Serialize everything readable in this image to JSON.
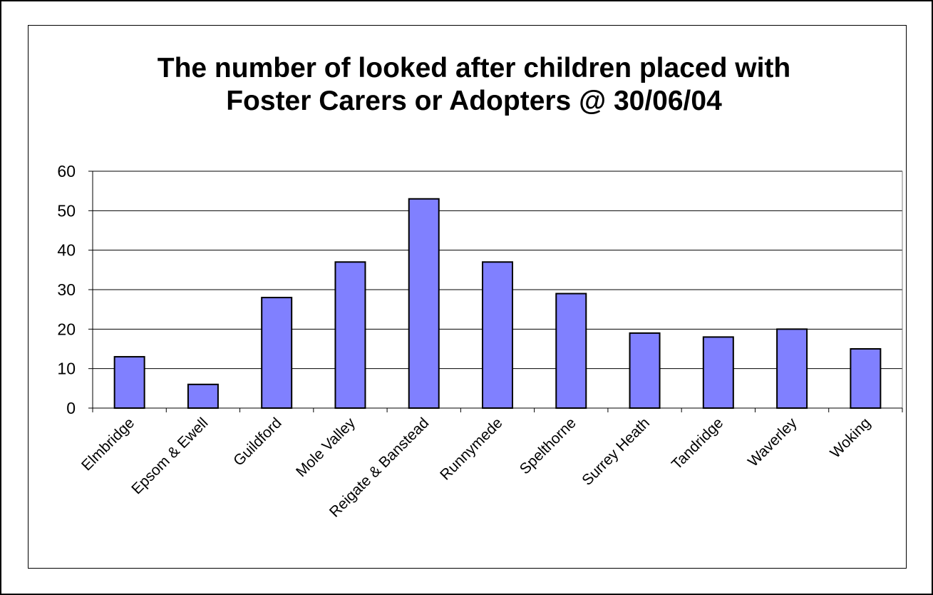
{
  "chart_data": {
    "type": "bar",
    "title": [
      "The number of looked after children placed with",
      "Foster Carers or Adopters @ 30/06/04"
    ],
    "xlabel": "",
    "ylabel": "",
    "categories": [
      "Elmbridge",
      "Epsom & Ewell",
      "Guildford",
      "Mole Valley",
      "Reigate & Banstead",
      "Runnymede",
      "Spelthorne",
      "Surrey Heath",
      "Tandridge",
      "Waverley",
      "Woking"
    ],
    "values": [
      13,
      6,
      28,
      37,
      53,
      37,
      29,
      19,
      18,
      20,
      15
    ],
    "ylim": [
      0,
      60
    ],
    "yticks": [
      0,
      10,
      20,
      30,
      40,
      50,
      60
    ],
    "grid": true,
    "legend": "none",
    "colors": {
      "bar_fill": "#8080ff",
      "bar_stroke": "#000000",
      "gridline": "#000000",
      "axis": "#000000"
    }
  }
}
